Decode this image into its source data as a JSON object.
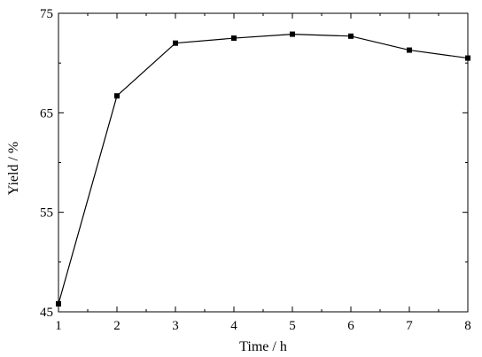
{
  "chart_data": {
    "type": "line",
    "xlabel": "Time / h",
    "ylabel": "Yield / %",
    "xlim": [
      1,
      8
    ],
    "ylim": [
      45,
      75
    ],
    "xticks": [
      1,
      2,
      3,
      4,
      5,
      6,
      7,
      8
    ],
    "yticks": [
      45,
      55,
      65,
      75
    ],
    "grid": false,
    "series": [
      {
        "x": [
          1,
          2,
          3,
          4,
          5,
          6,
          7,
          8
        ],
        "y": [
          45.8,
          66.7,
          72.0,
          72.5,
          72.9,
          72.7,
          71.3,
          70.5
        ],
        "marker": "square",
        "color": "#000000"
      }
    ]
  }
}
